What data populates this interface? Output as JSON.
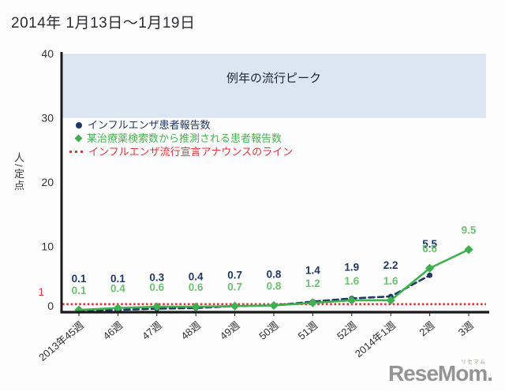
{
  "title": "2014年 1月13日～1月19日",
  "logo": {
    "text": "ReseMom.",
    "ruby": "リセマム"
  },
  "legend": {
    "items": [
      {
        "label": "インフルエンザ患者報告数",
        "marker": "circle",
        "color": "#1f3864"
      },
      {
        "label": "某治療薬検索数から推測される患者報告数",
        "marker": "diamond",
        "color": "#3fb050"
      },
      {
        "label": "インフルエンザ流行宣言アナウンスのライン",
        "marker": "dotted-line",
        "color": "#e0333b"
      }
    ]
  },
  "chart_data": {
    "type": "line",
    "title": "2014年 1月13日～1月19日",
    "ylabel": "人/定点",
    "ylim": [
      0,
      40
    ],
    "yticks": [
      0,
      10,
      20,
      30,
      40
    ],
    "grid": false,
    "legend_position": "top-left",
    "band": {
      "from": 30,
      "to": 40,
      "label": "例年の流行ピーク",
      "fill": "#dce6f2"
    },
    "threshold_line": {
      "value": 1,
      "tick_label": "1",
      "name": "インフルエンザ流行宣言アナウンスのライン",
      "color": "#e0333b",
      "style": "dotted"
    },
    "categories": [
      "2013年45週",
      "46週",
      "47週",
      "48週",
      "49週",
      "50週",
      "51週",
      "52週",
      "2014年1週",
      "2週",
      "3週"
    ],
    "series": [
      {
        "name": "インフルエンザ患者報告数",
        "color": "#1f3864",
        "label_color": "#1f3864",
        "line": "dashed",
        "marker": "circle",
        "values": [
          0.1,
          0.1,
          0.3,
          0.4,
          0.7,
          0.8,
          1.4,
          1.9,
          2.2,
          5.5,
          null
        ]
      },
      {
        "name": "某治療薬検索数から推測される患者報告数",
        "color": "#3fb050",
        "label_color": "#6cc271",
        "line": "solid",
        "marker": "diamond",
        "values": [
          0.1,
          0.4,
          0.6,
          0.6,
          0.7,
          0.8,
          1.2,
          1.6,
          1.6,
          6.6,
          9.5
        ]
      }
    ],
    "axis_color": "#1a1a1a",
    "tick_text_color": "#333333"
  }
}
